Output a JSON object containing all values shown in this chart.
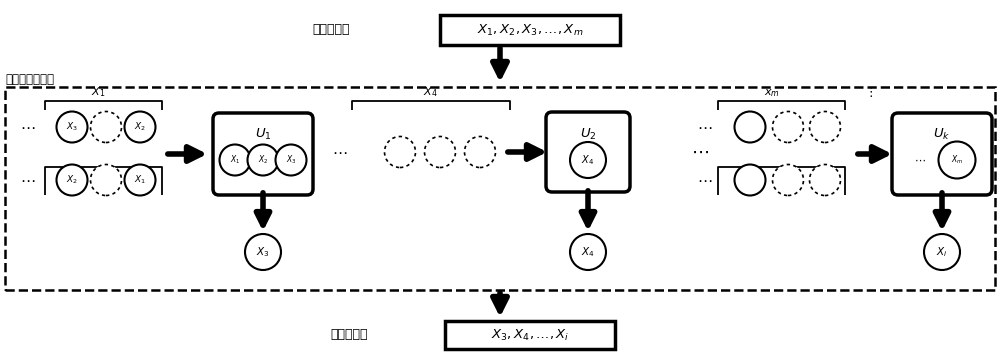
{
  "title_top_cn": "输入特征：",
  "label_method_cn": "特征筛选方法：",
  "title_bottom_cn": "输出特征：",
  "bg_color": "#ffffff",
  "fig_w": 10.0,
  "fig_h": 3.52,
  "dpi": 100,
  "xlim": [
    0,
    10
  ],
  "ylim": [
    0,
    3.52
  ]
}
